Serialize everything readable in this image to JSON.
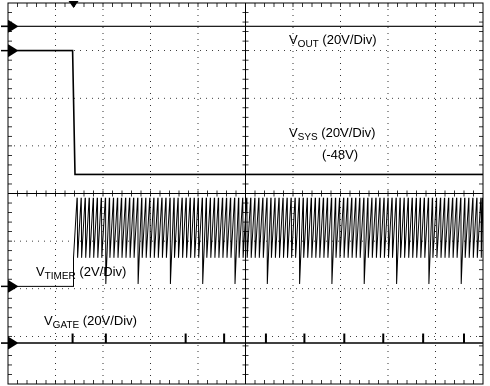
{
  "chart_data": {
    "type": "line",
    "title": "",
    "xlabel": "",
    "ylabel": "",
    "grid": true,
    "divisions": {
      "x": 10,
      "y": 8
    },
    "x_range_div": [
      0,
      10
    ],
    "y_range_div": [
      0,
      8
    ],
    "series": [
      {
        "name": "OUT",
        "label_main": "V",
        "label_sub": "OUT",
        "label_suffix": " (20V/Div)",
        "marker_level_div": 7.51,
        "points": [
          [
            0,
            7.51
          ],
          [
            10,
            7.51
          ]
        ]
      },
      {
        "name": "SYS",
        "label_main": "V",
        "label_sub": "SYS",
        "label_suffix": " (20V/Div)",
        "label_note": "(-48V)",
        "marker_level_div": 7.0,
        "points": [
          [
            0,
            7.0
          ],
          [
            1.36,
            7.0
          ],
          [
            1.41,
            4.4
          ],
          [
            1.46,
            4.4
          ],
          [
            10,
            4.4
          ]
        ]
      },
      {
        "name": "TIMER",
        "label_main": "V",
        "label_sub": "TIMER",
        "label_suffix": " (2V/Div)",
        "marker_level_div": 2.05,
        "baseline_div": 2.05,
        "ramp_start_div": 1.38,
        "ramp_period_div": 0.085,
        "ramp_low_div": 2.65,
        "ramp_high_div": 3.9,
        "dip_every": 8,
        "dip_low_div": 2.1
      },
      {
        "name": "GATE",
        "label_main": "V",
        "label_sub": "GATE",
        "label_suffix": " (20V/Div)",
        "marker_level_div": 0.86,
        "baseline_div": 0.86,
        "pulse_height_div": 0.2,
        "pulses_at_div": [
          1.36,
          2.06,
          3.74,
          4.55,
          5.43,
          6.24,
          7.08,
          7.9,
          8.74,
          9.6
        ]
      }
    ],
    "trigger_marker_x_div": 1.38
  }
}
